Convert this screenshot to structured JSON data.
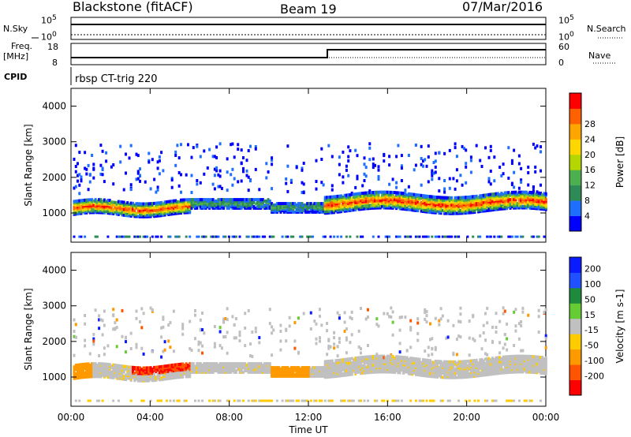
{
  "header": {
    "station": "Blackstone (fitACF)",
    "beam": "Beam 19",
    "date": "07/Mar/2016"
  },
  "noise_panel": {
    "left_label": "N.Sky",
    "right_label": "N.Search",
    "left_ticks": [
      "10^5",
      "10^0"
    ],
    "right_ticks": [
      "10^5",
      "10^0"
    ]
  },
  "freq_panel": {
    "left_label": "Freq.",
    "left_unit": "[MHz]",
    "right_label": "Nave",
    "left_ticks": [
      "18",
      "8"
    ],
    "right_ticks": [
      "60",
      "0"
    ]
  },
  "cpid_panel": {
    "label": "CPID",
    "mode": "rbsp CT-trig 220"
  },
  "colors": {
    "power": [
      "#0000ff",
      "#1f6fff",
      "#2e8b57",
      "#4caf50",
      "#b5d600",
      "#ffd700",
      "#ffa500",
      "#ff6000",
      "#ff0000"
    ],
    "velocity": [
      "#0a1cff",
      "#2050ff",
      "#1e8b3c",
      "#66cc33",
      "#c0c0c0",
      "#ffcc00",
      "#ff9900",
      "#ff5500",
      "#ff0000"
    ]
  },
  "chart_data": [
    {
      "type": "heatmap",
      "title": "",
      "xlabel": "Time UT",
      "ylabel": "Slant Range [km]",
      "xlim": [
        "00:00",
        "24:00"
      ],
      "ylim": [
        180,
        4500
      ],
      "x_ticks": [
        "00:00",
        "04:00",
        "08:00",
        "12:00",
        "16:00",
        "20:00",
        "00:00"
      ],
      "y_ticks": [
        "1000",
        "2000",
        "3000",
        "4000"
      ],
      "colorbar": {
        "label": "Power [dB]",
        "ticks": [
          "4",
          "8",
          "12",
          "16",
          "20",
          "24",
          "28"
        ],
        "range": [
          0,
          30
        ]
      },
      "bands": [
        {
          "t0": 0.0,
          "t1": 6.0,
          "r0": 900,
          "r1": 1350,
          "core": 26
        },
        {
          "t0": 6.0,
          "t1": 10.0,
          "r0": 1050,
          "r1": 1400,
          "core": 10
        },
        {
          "t0": 10.0,
          "t1": 12.7,
          "r0": 1000,
          "r1": 1300,
          "core": 6
        },
        {
          "t0": 12.7,
          "t1": 24.0,
          "r0": 1050,
          "r1": 1500,
          "core": 20
        }
      ]
    },
    {
      "type": "heatmap",
      "title": "",
      "xlabel": "Time UT",
      "ylabel": "Slant Range [km]",
      "xlim": [
        "00:00",
        "24:00"
      ],
      "ylim": [
        180,
        4500
      ],
      "x_ticks": [
        "00:00",
        "04:00",
        "08:00",
        "12:00",
        "16:00",
        "20:00",
        "00:00"
      ],
      "y_ticks": [
        "1000",
        "2000",
        "3000",
        "4000"
      ],
      "colorbar": {
        "label": "Velocity [m s-1]",
        "ticks": [
          "200",
          "100",
          "50",
          "15",
          "-15",
          "-50",
          "-100",
          "-200"
        ],
        "range": [
          -250,
          250
        ]
      }
    }
  ],
  "time_axis": {
    "label": "Time UT",
    "ticks": [
      "00:00",
      "04:00",
      "08:00",
      "12:00",
      "16:00",
      "20:00",
      "00:00"
    ]
  }
}
